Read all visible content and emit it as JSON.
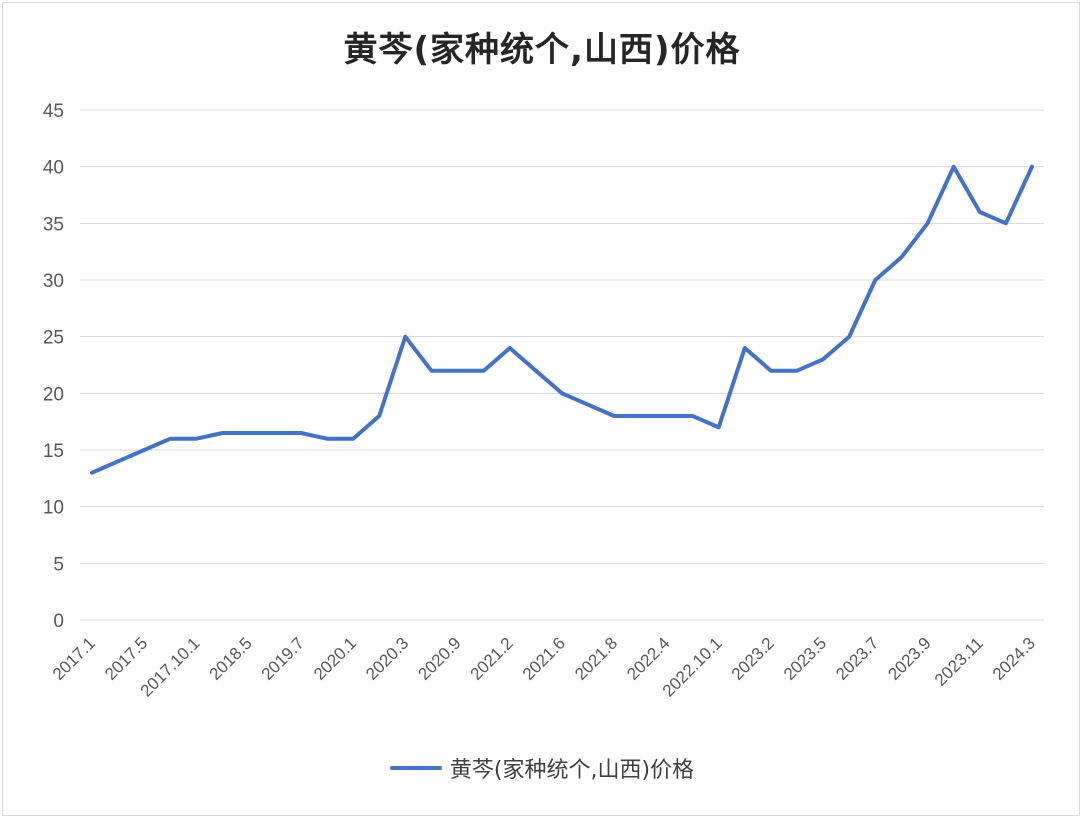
{
  "colors": {
    "series": "#4472C4",
    "grid": "#d9d9d9",
    "text": "#595959"
  },
  "chart_data": {
    "type": "line",
    "title": "黄芩(家种统个,山西)价格",
    "xlabel": "",
    "ylabel": "",
    "ylim": [
      0,
      45
    ],
    "yticks": [
      0,
      5,
      10,
      15,
      20,
      25,
      30,
      35,
      40,
      45
    ],
    "grid": true,
    "legend_position": "bottom",
    "x_tick_labels": [
      "2017.1",
      "2017.5",
      "2017.10.1",
      "2018.5",
      "2019.7",
      "2020.1",
      "2020.3",
      "2020.9",
      "2021.2",
      "2021.6",
      "2021.8",
      "2022.4",
      "2022.10.1",
      "2023.2",
      "2023.5",
      "2023.7",
      "2023.9",
      "2023.11",
      "2024.3"
    ],
    "series": [
      {
        "name": "黄芩(家种统个,山西)价格",
        "values": [
          13,
          14,
          15,
          16,
          16,
          16.5,
          16.5,
          16.5,
          16.5,
          16,
          16,
          18,
          25,
          22,
          22,
          22,
          24,
          22,
          20,
          19,
          18,
          18,
          18,
          18,
          17,
          24,
          22,
          22,
          23,
          25,
          30,
          32,
          35,
          40,
          36,
          35,
          40
        ]
      }
    ]
  }
}
